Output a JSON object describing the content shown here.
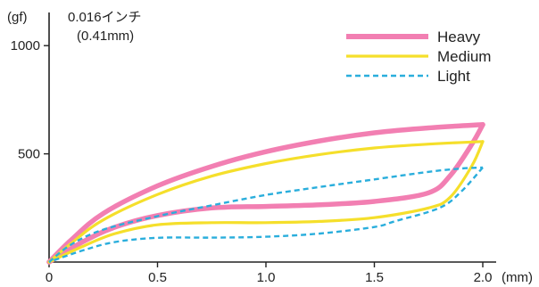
{
  "chart_data": {
    "type": "line",
    "title": "",
    "ylabel": "(gf)",
    "xlabel": "(mm)",
    "annotation": [
      "0.016インチ",
      "(0.41mm)"
    ],
    "xlim": [
      0,
      2.2
    ],
    "ylim": [
      0,
      1050
    ],
    "x_ticks": [
      0,
      0.5,
      1.0,
      1.5,
      2.0
    ],
    "x_tick_labels": [
      "0",
      "0.5",
      "1.0",
      "1.5",
      "2.0"
    ],
    "y_ticks": [
      500,
      1000
    ],
    "y_tick_labels": [
      "500",
      "1000"
    ],
    "grid": false,
    "legend_position": "top-right",
    "series": [
      {
        "name": "Heavy",
        "color": "#f27fb2",
        "style": "solid",
        "loading": [
          [
            0,
            0
          ],
          [
            0.1,
            100
          ],
          [
            0.25,
            225
          ],
          [
            0.5,
            352
          ],
          [
            0.75,
            442
          ],
          [
            1.0,
            510
          ],
          [
            1.25,
            560
          ],
          [
            1.5,
            597
          ],
          [
            1.75,
            620
          ],
          [
            2.0,
            635
          ]
        ],
        "unloading": [
          [
            2.0,
            635
          ],
          [
            1.95,
            545
          ],
          [
            1.85,
            400
          ],
          [
            1.75,
            320
          ],
          [
            1.5,
            280
          ],
          [
            1.25,
            265
          ],
          [
            1.0,
            257
          ],
          [
            0.75,
            250
          ],
          [
            0.5,
            215
          ],
          [
            0.3,
            160
          ],
          [
            0.15,
            90
          ],
          [
            0,
            0
          ]
        ]
      },
      {
        "name": "Medium",
        "color": "#f5df2b",
        "style": "solid",
        "loading": [
          [
            0,
            0
          ],
          [
            0.1,
            85
          ],
          [
            0.25,
            195
          ],
          [
            0.5,
            312
          ],
          [
            0.75,
            397
          ],
          [
            1.0,
            455
          ],
          [
            1.25,
            497
          ],
          [
            1.5,
            527
          ],
          [
            1.75,
            545
          ],
          [
            2.0,
            557
          ]
        ],
        "unloading": [
          [
            2.0,
            557
          ],
          [
            1.95,
            445
          ],
          [
            1.85,
            300
          ],
          [
            1.75,
            250
          ],
          [
            1.5,
            205
          ],
          [
            1.25,
            188
          ],
          [
            1.0,
            182
          ],
          [
            0.75,
            182
          ],
          [
            0.5,
            172
          ],
          [
            0.3,
            130
          ],
          [
            0.15,
            70
          ],
          [
            0,
            0
          ]
        ]
      },
      {
        "name": "Light",
        "color": "#2aaedc",
        "style": "dashed",
        "loading": [
          [
            0,
            0
          ],
          [
            0.1,
            80
          ],
          [
            0.25,
            150
          ],
          [
            0.5,
            212
          ],
          [
            0.75,
            262
          ],
          [
            1.0,
            310
          ],
          [
            1.25,
            347
          ],
          [
            1.5,
            382
          ],
          [
            1.75,
            417
          ],
          [
            1.9,
            432
          ],
          [
            2.0,
            437
          ]
        ],
        "unloading": [
          [
            2.0,
            437
          ],
          [
            1.9,
            325
          ],
          [
            1.8,
            250
          ],
          [
            1.6,
            190
          ],
          [
            1.5,
            162
          ],
          [
            1.25,
            132
          ],
          [
            1.0,
            117
          ],
          [
            0.75,
            113
          ],
          [
            0.5,
            112
          ],
          [
            0.3,
            92
          ],
          [
            0.15,
            52
          ],
          [
            0,
            0
          ]
        ]
      }
    ]
  }
}
